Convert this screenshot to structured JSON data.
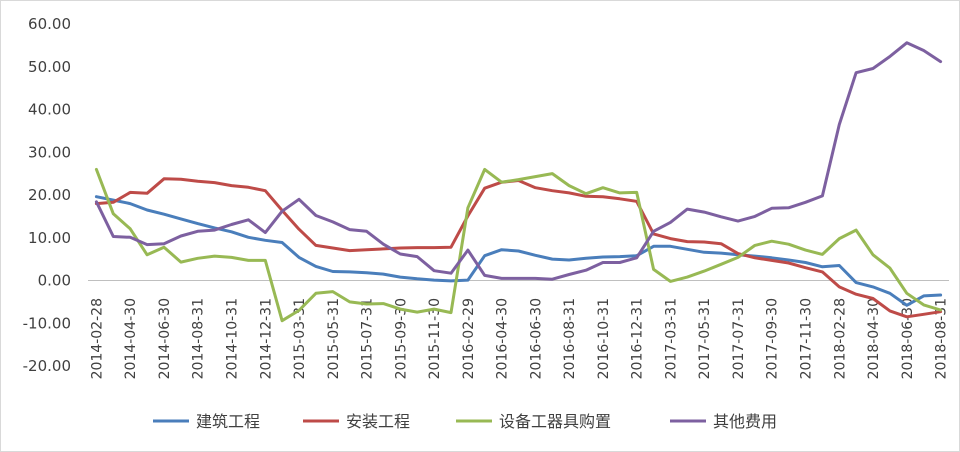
{
  "chart_data": {
    "type": "line",
    "title": "",
    "xlabel": "",
    "ylabel": "",
    "ylim": [
      -20,
      60
    ],
    "y_ticks": [
      -20,
      -10,
      0,
      10,
      20,
      30,
      40,
      50,
      60
    ],
    "y_tick_labels": [
      "-20.00",
      "-10.00",
      "0.00",
      "10.00",
      "20.00",
      "30.00",
      "40.00",
      "50.00",
      "60.00"
    ],
    "grid": false,
    "legend_position": "bottom",
    "x_tick_labels": [
      "2014-02-28",
      "2014-04-30",
      "2014-06-30",
      "2014-08-31",
      "2014-10-31",
      "2014-12-31",
      "2015-03-31",
      "2015-05-31",
      "2015-07-31",
      "2015-09-30",
      "2015-11-30",
      "2016-02-29",
      "2016-04-30",
      "2016-06-30",
      "2016-08-31",
      "2016-10-31",
      "2016-12-31",
      "2017-03-31",
      "2017-05-31",
      "2017-07-31",
      "2017-09-30",
      "2017-11-30",
      "2018-02-28",
      "2018-04-30",
      "2018-06-30",
      "2018-08-31"
    ],
    "categories": [
      "2014-02",
      "2014-03",
      "2014-04",
      "2014-05",
      "2014-06",
      "2014-07",
      "2014-08",
      "2014-09",
      "2014-10",
      "2014-11",
      "2014-12",
      "2015-02",
      "2015-03",
      "2015-04",
      "2015-05",
      "2015-06",
      "2015-07",
      "2015-08",
      "2015-09",
      "2015-10",
      "2015-11",
      "2015-12",
      "2016-02",
      "2016-03",
      "2016-04",
      "2016-05",
      "2016-06",
      "2016-07",
      "2016-08",
      "2016-09",
      "2016-10",
      "2016-11",
      "2016-12",
      "2017-02",
      "2017-03",
      "2017-04",
      "2017-05",
      "2017-06",
      "2017-07",
      "2017-08",
      "2017-09",
      "2017-10",
      "2017-11",
      "2017-12",
      "2018-02",
      "2018-03",
      "2018-04",
      "2018-05",
      "2018-06",
      "2018-07",
      "2018-08"
    ],
    "series": [
      {
        "name": "建筑工程",
        "color": "#4a7ebb",
        "values": [
          19.6,
          18.8,
          18.0,
          16.5,
          15.5,
          14.4,
          13.3,
          12.3,
          11.4,
          10.1,
          9.4,
          8.9,
          5.4,
          3.3,
          2.1,
          2.0,
          1.8,
          1.5,
          0.8,
          0.4,
          0.1,
          -0.1,
          0.1,
          5.8,
          7.2,
          6.9,
          5.9,
          5.0,
          4.8,
          5.2,
          5.5,
          5.6,
          5.8,
          8.0,
          8.0,
          7.3,
          6.6,
          6.4,
          6.0,
          5.7,
          5.3,
          4.8,
          4.2,
          3.2,
          3.5,
          -0.5,
          -1.5,
          -3.0,
          -5.8,
          -3.6,
          -3.4
        ]
      },
      {
        "name": "安装工程",
        "color": "#be4b48",
        "values": [
          18.0,
          18.3,
          20.6,
          20.4,
          23.8,
          23.7,
          23.2,
          22.9,
          22.2,
          21.8,
          21.0,
          16.4,
          12.0,
          8.2,
          7.6,
          7.0,
          7.2,
          7.4,
          7.6,
          7.7,
          7.7,
          7.8,
          15.1,
          21.6,
          23.0,
          23.4,
          21.7,
          21.0,
          20.5,
          19.7,
          19.6,
          19.1,
          18.5,
          10.9,
          9.8,
          9.1,
          9.0,
          8.6,
          6.3,
          5.3,
          4.7,
          4.1,
          3.0,
          2.0,
          -1.5,
          -3.2,
          -4.2,
          -7.1,
          -8.5,
          -7.9,
          -7.3
        ]
      },
      {
        "name": "设备工器具购置",
        "color": "#98b954",
        "values": [
          26.0,
          15.6,
          12.1,
          6.0,
          7.8,
          4.3,
          5.2,
          5.7,
          5.4,
          4.7,
          4.7,
          -9.4,
          -7.0,
          -3.0,
          -2.6,
          -5.0,
          -5.5,
          -5.4,
          -6.7,
          -7.4,
          -6.7,
          -7.5,
          17.0,
          26.0,
          23.0,
          23.6,
          24.3,
          25.0,
          22.2,
          20.3,
          21.7,
          20.5,
          20.6,
          2.6,
          -0.2,
          0.8,
          2.2,
          3.8,
          5.4,
          8.2,
          9.2,
          8.5,
          7.1,
          6.1,
          9.8,
          11.8,
          6.0,
          2.9,
          -3.0,
          -5.7,
          -6.9
        ]
      },
      {
        "name": "其他费用",
        "color": "#7d60a0",
        "values": [
          18.4,
          10.3,
          10.1,
          8.4,
          8.6,
          10.4,
          11.5,
          11.8,
          13.1,
          14.2,
          11.2,
          16.2,
          19.0,
          15.2,
          13.7,
          11.9,
          11.5,
          8.5,
          6.2,
          5.6,
          2.3,
          1.7,
          7.1,
          1.2,
          0.5,
          0.5,
          0.5,
          0.3,
          1.4,
          2.4,
          4.2,
          4.2,
          5.3,
          11.5,
          13.6,
          16.7,
          16.0,
          14.9,
          13.9,
          15.0,
          16.9,
          17.0,
          18.3,
          19.8,
          36.5,
          48.6,
          49.6,
          52.4,
          55.6,
          53.8,
          51.2
        ]
      }
    ]
  }
}
